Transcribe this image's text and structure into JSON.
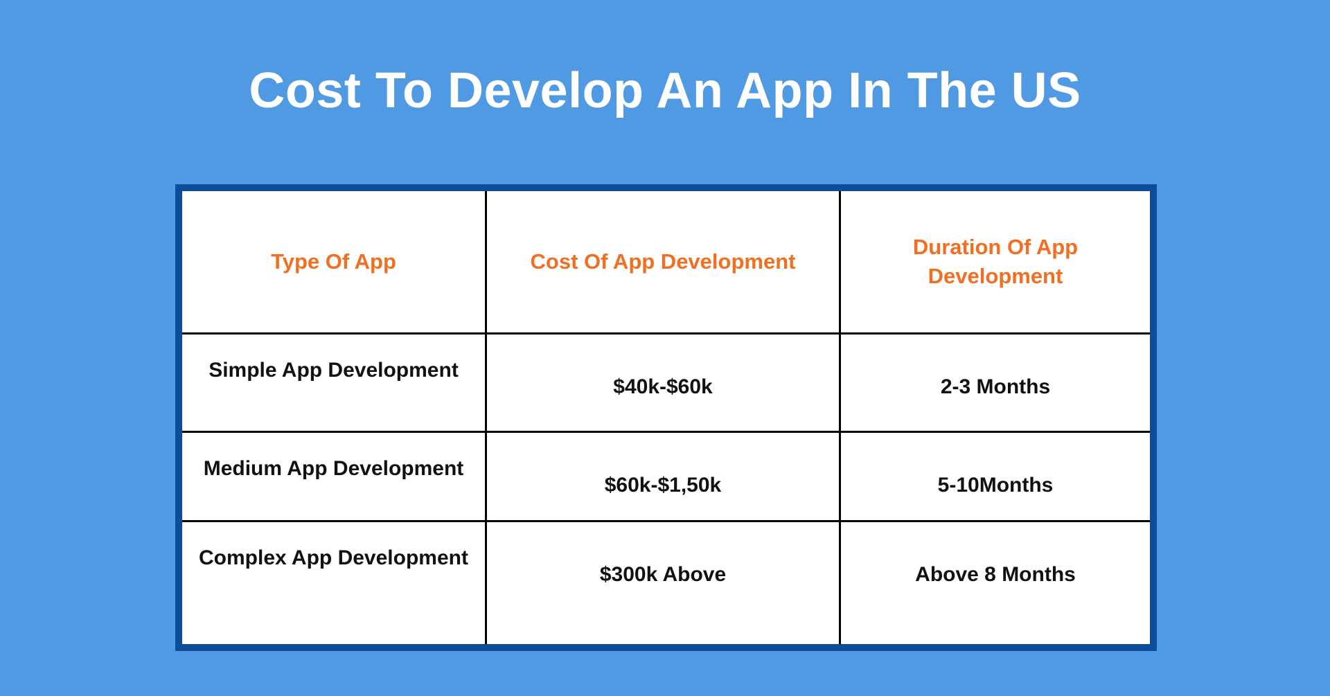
{
  "chart_data": {
    "type": "table",
    "title": "Cost To Develop An App In The US",
    "columns": [
      "Type Of App",
      "Cost Of App Development",
      "Duration Of App Development"
    ],
    "rows": [
      [
        "Simple App Development",
        "$40k-$60k",
        "2-3 Months"
      ],
      [
        "Medium App Development",
        "$60k-$1,50k",
        "5-10Months"
      ],
      [
        "Complex App Development",
        "$300k Above",
        "Above 8 Months"
      ]
    ],
    "legend": "none",
    "grid": "on"
  },
  "colors": {
    "background": "#4f9ae3",
    "table_border": "#0c4c99",
    "header_text": "#f26e21",
    "body_text": "#111111",
    "title_text": "#ffffff",
    "grid_line": "#000000"
  }
}
